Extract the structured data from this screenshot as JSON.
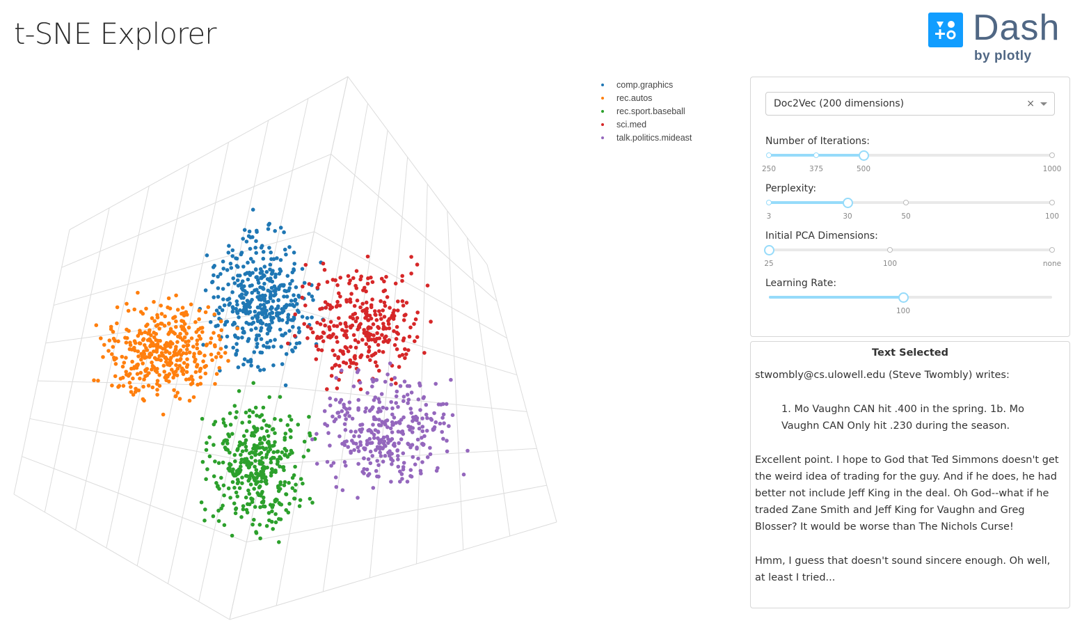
{
  "app": {
    "title": "t-SNE Explorer"
  },
  "logo": {
    "word": "Dash",
    "byline": "by plotly",
    "color": "#119dff"
  },
  "legend": [
    {
      "label": "comp.graphics",
      "color": "#1f77b4"
    },
    {
      "label": "rec.autos",
      "color": "#ff7f0e"
    },
    {
      "label": "rec.sport.baseball",
      "color": "#2ca02c"
    },
    {
      "label": "sci.med",
      "color": "#d62728"
    },
    {
      "label": "talk.politics.mideast",
      "color": "#9467bd"
    }
  ],
  "controls": {
    "algorithm": {
      "value": "Doc2Vec (200 dimensions)",
      "clear_icon": "×"
    },
    "iterations": {
      "label": "Number of Iterations:",
      "marks": [
        "250",
        "375",
        "500",
        "1000"
      ],
      "value": "500"
    },
    "perplexity": {
      "label": "Perplexity:",
      "marks": [
        "3",
        "30",
        "50",
        "100"
      ],
      "value": "30"
    },
    "pca": {
      "label": "Initial PCA Dimensions:",
      "marks": [
        "25",
        "100",
        "none"
      ],
      "value": "25"
    },
    "learning_rate": {
      "label": "Learning Rate:",
      "marks": [
        "100"
      ],
      "value": "100"
    }
  },
  "text_selected": {
    "title": "Text Selected",
    "line1": "stwombly@cs.ulowell.edu (Steve Twombly) writes:",
    "quote": "1. Mo Vaughn CAN hit .400 in the spring. 1b. Mo Vaughn CAN Only hit .230 during the season.",
    "para1": "Excellent point. I hope to God that Ted Simmons doesn't get the weird idea of trading for the guy. And if he does, he had better not include Jeff King in the deal. Oh God--what if he traded Zane Smith and Jeff King for Vaughn and Greg Blosser? It would be worse than The Nichols Curse!",
    "para2": "Hmm, I guess that doesn't sound sincere enough. Oh well, at least I tried..."
  }
}
